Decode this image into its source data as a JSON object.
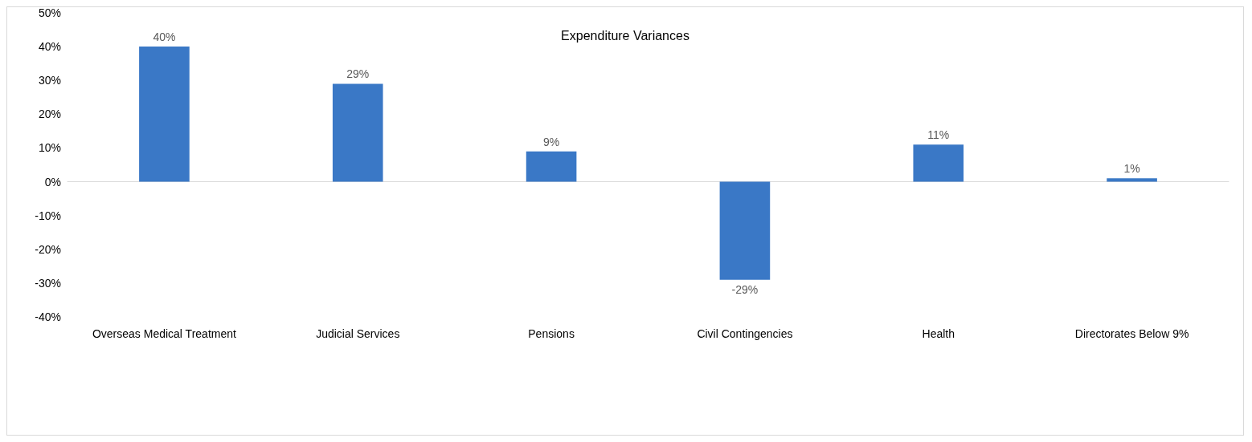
{
  "chart_data": {
    "type": "bar",
    "title": "Expenditure Variances",
    "categories": [
      "Overseas Medical Treatment",
      "Judicial Services",
      "Pensions",
      "Civil Contingencies",
      "Health",
      "Directorates Below 9%"
    ],
    "values": [
      40,
      29,
      9,
      -29,
      11,
      1
    ],
    "value_labels": [
      "40%",
      "29%",
      "9%",
      "-29%",
      "11%",
      "1%"
    ],
    "color": "#3a78c6",
    "ylim": [
      -40,
      50
    ],
    "yticks": [
      {
        "value": -40,
        "label": "-40%"
      },
      {
        "value": -30,
        "label": "-30%"
      },
      {
        "value": -20,
        "label": "-20%"
      },
      {
        "value": -10,
        "label": "-10%"
      },
      {
        "value": 0,
        "label": "0%"
      },
      {
        "value": 10,
        "label": "10%"
      },
      {
        "value": 20,
        "label": "20%"
      },
      {
        "value": 30,
        "label": "30%"
      },
      {
        "value": 40,
        "label": "40%"
      },
      {
        "value": 50,
        "label": "50%"
      }
    ]
  }
}
